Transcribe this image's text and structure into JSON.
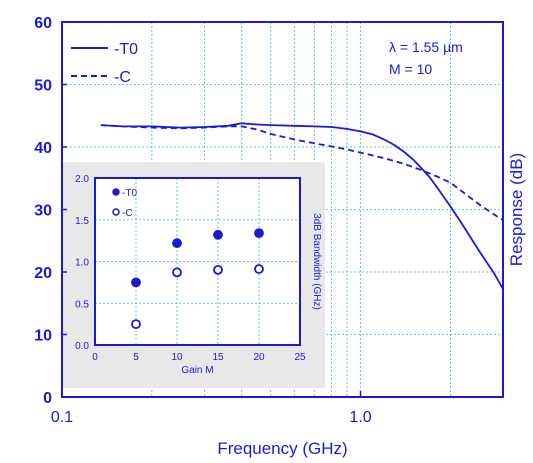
{
  "chart_data": [
    {
      "type": "line",
      "title": "",
      "xlabel": "Frequency (GHz)",
      "ylabel": "Response (dB)",
      "xscale": "log",
      "xlim": [
        0.1,
        3.0
      ],
      "ylim": [
        0,
        60
      ],
      "x_ticks": [
        0.1,
        1.0
      ],
      "x_tick_labels": [
        "0.1",
        "1.0"
      ],
      "y_ticks": [
        0,
        10,
        20,
        30,
        40,
        50,
        60
      ],
      "y_tick_labels": [
        "0",
        "10",
        "20",
        "30",
        "40",
        "50",
        "60"
      ],
      "grid": "dashed",
      "legend_placement": "top-left",
      "annotations": [
        "λ = 1.55 µm",
        "M = 10"
      ],
      "series": [
        {
          "name": "-T0",
          "style": "solid",
          "x": [
            0.135,
            0.16,
            0.2,
            0.25,
            0.3,
            0.36,
            0.4,
            0.45,
            0.5,
            0.6,
            0.7,
            0.8,
            0.9,
            1.0,
            1.1,
            1.2,
            1.3,
            1.4,
            1.5,
            1.6,
            1.7,
            1.8,
            2.0,
            2.2,
            2.5,
            2.8,
            3.0
          ],
          "y": [
            43.5,
            43.3,
            43.3,
            43.1,
            43.2,
            43.4,
            43.8,
            43.6,
            43.5,
            43.4,
            43.3,
            43.2,
            42.9,
            42.5,
            42,
            41.2,
            40.3,
            39.2,
            38,
            36.6,
            35.2,
            33.6,
            30.5,
            27.5,
            23.3,
            19.8,
            17.3
          ]
        },
        {
          "name": "-C",
          "style": "dashed",
          "x": [
            0.135,
            0.16,
            0.2,
            0.25,
            0.3,
            0.36,
            0.4,
            0.45,
            0.5,
            0.6,
            0.7,
            0.8,
            0.9,
            1.0,
            1.2,
            1.4,
            1.6,
            1.8,
            2.0,
            2.2,
            2.5,
            2.8,
            3.0
          ],
          "y": [
            43.5,
            43.3,
            43.1,
            43,
            43.1,
            43.3,
            43.3,
            42.8,
            42.1,
            41.2,
            40.6,
            40.1,
            39.6,
            39.1,
            38.2,
            37.3,
            36.3,
            35.3,
            34.3,
            32.8,
            30.8,
            29.2,
            28.3
          ]
        }
      ]
    },
    {
      "type": "scatter",
      "title": "",
      "xlabel": "Gain M",
      "ylabel": "3dB Bandwidth (GHz)",
      "xlim": [
        0,
        25
      ],
      "ylim": [
        0.0,
        2.0
      ],
      "x_ticks": [
        0,
        5,
        10,
        15,
        20,
        25
      ],
      "x_tick_labels": [
        "0",
        "5",
        "10",
        "15",
        "20",
        "25"
      ],
      "y_ticks": [
        0.0,
        0.5,
        1.0,
        1.5,
        2.0
      ],
      "y_tick_labels": [
        "0.0",
        "0.5",
        "1.0",
        "1.5",
        "2.0"
      ],
      "grid": "dashed",
      "legend_placement": "top-left",
      "series": [
        {
          "name": "-T0",
          "marker": "filled-circle",
          "x": [
            5,
            10,
            15,
            20
          ],
          "y": [
            0.75,
            1.22,
            1.32,
            1.34
          ]
        },
        {
          "name": "-C",
          "marker": "open-circle",
          "x": [
            5,
            10,
            15,
            20
          ],
          "y": [
            0.25,
            0.87,
            0.9,
            0.91
          ]
        }
      ]
    }
  ],
  "colors": {
    "axis": "#1a1ad6",
    "series_line": "#1a1ad6",
    "grid": "#3fb8e0",
    "inset_background": "#e8e8e8",
    "text": "#1a1ad6",
    "legend_text": "#1a1ad6"
  }
}
